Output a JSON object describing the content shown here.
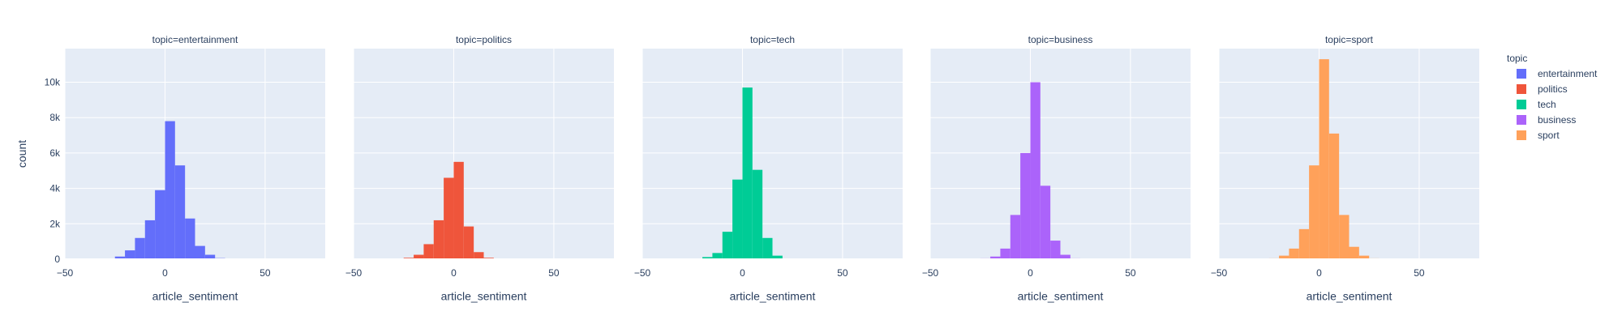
{
  "chart_data": {
    "type": "bar",
    "facet_by": "topic",
    "xlabel": "article_sentiment",
    "ylabel": "count",
    "xlim": [
      -50,
      80
    ],
    "ylim": [
      0,
      11900
    ],
    "x_ticks": [
      -50,
      0,
      50
    ],
    "x_tick_labels": [
      "−50",
      "0",
      "50"
    ],
    "y_ticks": [
      0,
      2000,
      4000,
      6000,
      8000,
      10000
    ],
    "y_tick_labels": [
      "0",
      "2k",
      "4k",
      "6k",
      "8k",
      "10k"
    ],
    "grid": true,
    "legend": {
      "title": "topic",
      "placement": "right",
      "items": [
        {
          "name": "entertainment",
          "color": "#636efa"
        },
        {
          "name": "politics",
          "color": "#EF553B"
        },
        {
          "name": "tech",
          "color": "#00cc96"
        },
        {
          "name": "business",
          "color": "#ab63fa"
        },
        {
          "name": "sport",
          "color": "#FFA15A"
        }
      ]
    },
    "bin_width": 5,
    "facets": [
      {
        "title": "topic=entertainment",
        "name": "entertainment",
        "color": "#636efa",
        "bin_starts": [
          -30,
          -25,
          -20,
          -15,
          -10,
          -5,
          0,
          5,
          10,
          15,
          20,
          25
        ],
        "values": [
          30,
          150,
          500,
          1200,
          2200,
          3900,
          7800,
          5300,
          2300,
          750,
          250,
          60
        ]
      },
      {
        "title": "topic=politics",
        "name": "politics",
        "color": "#EF553B",
        "bin_starts": [
          -25,
          -20,
          -15,
          -10,
          -5,
          0,
          5,
          10,
          15
        ],
        "values": [
          80,
          250,
          850,
          2200,
          4600,
          5500,
          1850,
          400,
          80
        ]
      },
      {
        "title": "topic=tech",
        "name": "tech",
        "color": "#00cc96",
        "bin_starts": [
          -25,
          -20,
          -15,
          -10,
          -5,
          0,
          5,
          10,
          15,
          20
        ],
        "values": [
          40,
          120,
          350,
          1550,
          4500,
          9700,
          5050,
          1200,
          200,
          40
        ]
      },
      {
        "title": "topic=business",
        "name": "business",
        "color": "#ab63fa",
        "bin_starts": [
          -25,
          -20,
          -15,
          -10,
          -5,
          0,
          5,
          10,
          15,
          20
        ],
        "values": [
          50,
          150,
          600,
          2500,
          6000,
          10000,
          4150,
          1050,
          250,
          50
        ]
      },
      {
        "title": "topic=sport",
        "name": "sport",
        "color": "#FFA15A",
        "bin_starts": [
          -25,
          -20,
          -15,
          -10,
          -5,
          0,
          5,
          10,
          15,
          20,
          25
        ],
        "values": [
          50,
          200,
          600,
          1700,
          5300,
          11300,
          7100,
          2500,
          700,
          200,
          50
        ]
      }
    ]
  }
}
